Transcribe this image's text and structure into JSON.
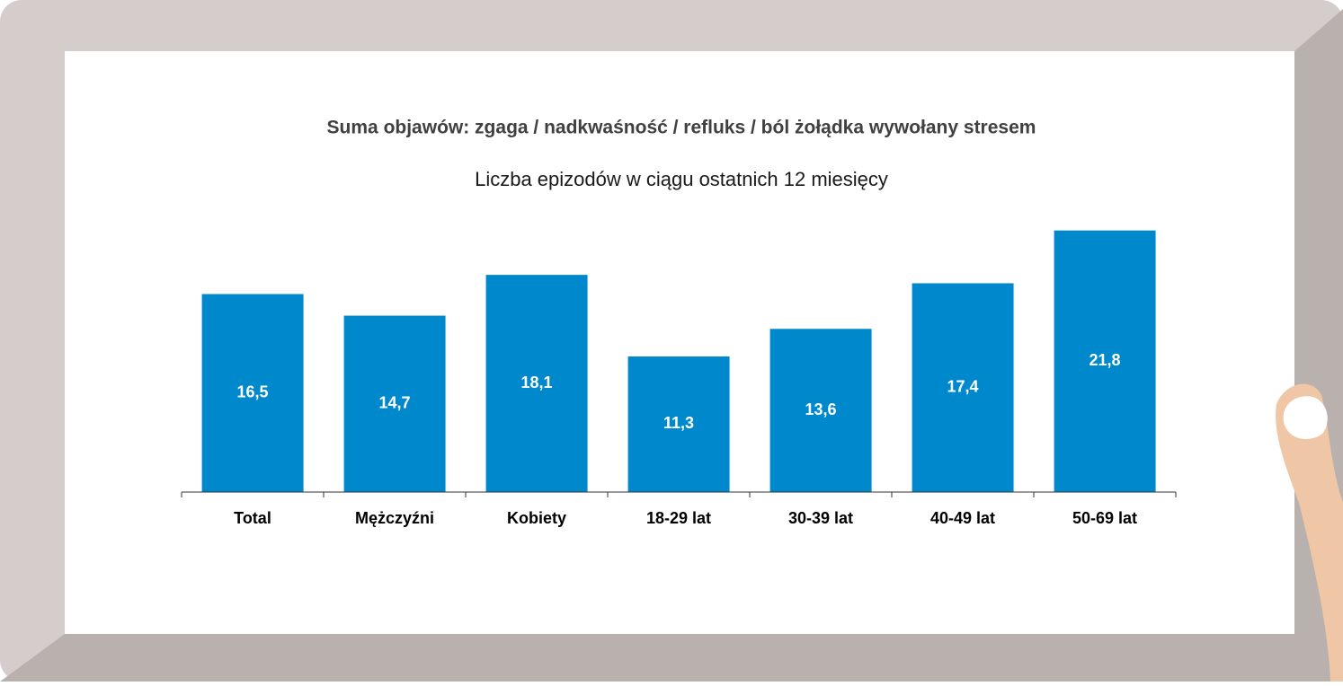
{
  "chart_data": {
    "type": "bar",
    "title": "Suma objawów: zgaga / nadkwaśność / refluks / ból żołądka wywołany stresem",
    "subtitle": "Liczba epizodów w ciągu ostatnich 12 miesięcy",
    "categories": [
      "Total",
      "Mężczyźni",
      "Kobiety",
      "18-29 lat",
      "30-39 lat",
      "40-49 lat",
      "50-69 lat"
    ],
    "values": [
      16.5,
      14.7,
      18.1,
      11.3,
      13.6,
      17.4,
      21.8
    ],
    "value_labels": [
      "16,5",
      "14,7",
      "18,1",
      "11,3",
      "13,6",
      "17,4",
      "21,8"
    ],
    "color": "#0088cc",
    "ylim": [
      0,
      22
    ]
  }
}
